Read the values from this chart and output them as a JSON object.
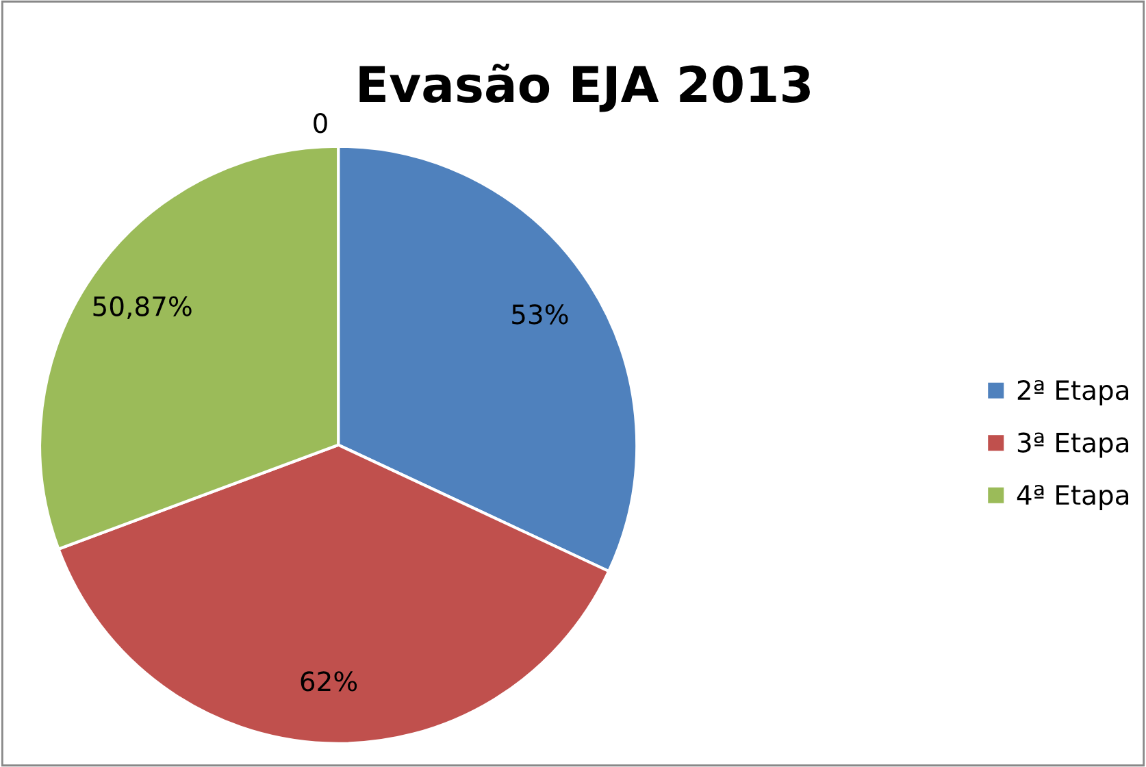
{
  "chart_data": {
    "type": "pie",
    "title": "Evasão EJA 2013",
    "categories": [
      "2ª Etapa",
      "3ª Etapa",
      "4ª Etapa"
    ],
    "values": [
      53,
      62,
      50.87
    ],
    "value_labels": [
      "53%",
      "62%",
      "50,87%"
    ],
    "colors": [
      "#4f81bd",
      "#c0504d",
      "#9bbb59"
    ],
    "annotations": [
      "0"
    ],
    "legend": "right"
  }
}
